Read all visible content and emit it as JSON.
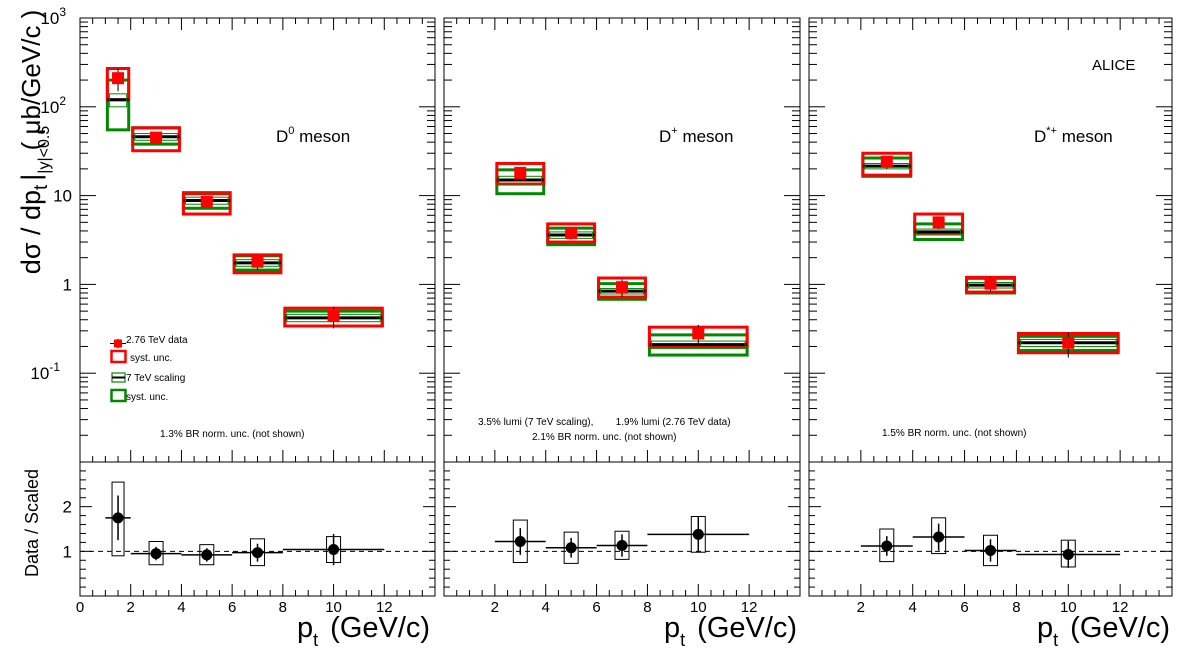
{
  "colors": {
    "data": "#ff0000",
    "scaling": "#008800",
    "ratio": "#000000"
  },
  "yaxis": {
    "label_main": "dσ / dp",
    "label_sub": "t",
    "label_bar_sub": "|y|<0.5",
    "label_unit": "( μb/GeV/c )",
    "tick_labels": [
      {
        "value": 0.1,
        "base": "10",
        "exp": "-1"
      },
      {
        "value": 1,
        "base": "1",
        "exp": ""
      },
      {
        "value": 10,
        "base": "10",
        "exp": ""
      },
      {
        "value": 100,
        "base": "10",
        "exp": "2"
      },
      {
        "value": 1000,
        "base": "10",
        "exp": "3"
      }
    ]
  },
  "ratio_axis": {
    "label": "Data / Scaled",
    "ticks": [
      "1",
      "2"
    ],
    "reference_line": 1
  },
  "xaxis": {
    "label_main": "p",
    "label_sub": "t",
    "label_unit": "(GeV/c)",
    "first_panel_ticks": [
      "0",
      "2",
      "4",
      "6",
      "8",
      "10",
      "12"
    ],
    "other_panel_ticks": [
      "2",
      "4",
      "6",
      "8",
      "10",
      "12"
    ]
  },
  "experiment_label": "ALICE",
  "legend": [
    {
      "label": "2.76 TeV data",
      "symbol": "marker"
    },
    {
      "label": "syst. unc.",
      "symbol": "red-box"
    },
    {
      "label": "7 TeV scaling",
      "symbol": "green-line"
    },
    {
      "label": "syst. unc.",
      "symbol": "green-box"
    }
  ],
  "panels": [
    {
      "meson": {
        "base": "D",
        "sup": "0",
        "rest": " meson"
      },
      "notes": [
        "1.3% BR norm. unc. (not shown)"
      ],
      "ratio_notes": []
    },
    {
      "meson": {
        "base": "D",
        "sup": "+",
        "rest": " meson"
      },
      "notes": [
        "3.5% lumi (7 TeV scaling),        1.9% lumi (2.76 TeV data)",
        "2.1% BR norm. unc. (not shown)"
      ]
    },
    {
      "meson": {
        "base": "D",
        "sup": "*+",
        "rest": " meson"
      },
      "notes": [
        "1.5% BR norm. unc. (not shown)"
      ]
    }
  ],
  "chart_data": [
    {
      "type": "scatter",
      "title": "D0 meson",
      "xlabel": "pt (GeV/c)",
      "ylabel": "dσ / dpt |y|<0.5 ( μb/GeV/c )",
      "xlim": [
        0,
        14
      ],
      "ylim": [
        0.01,
        1000
      ],
      "yscale": "log",
      "ratio_ylim": [
        0,
        3
      ],
      "bins": [
        {
          "xlo": 1,
          "xhi": 2,
          "x": 1.5,
          "data": 210,
          "data_err": 60,
          "data_syst": [
            120,
            270
          ],
          "scaling": 120,
          "scaling_err": 20,
          "scaling_syst": [
            55,
            200
          ],
          "ratio": 1.75,
          "ratio_err": 0.5,
          "ratio_syst": [
            0.9,
            2.55
          ]
        },
        {
          "xlo": 2,
          "xhi": 4,
          "x": 3,
          "data": 45,
          "data_err": 6,
          "data_syst": [
            32,
            58
          ],
          "scaling": 46,
          "scaling_err": 4,
          "scaling_syst": [
            38,
            58
          ],
          "ratio": 0.95,
          "ratio_err": 0.15,
          "ratio_syst": [
            0.7,
            1.22
          ]
        },
        {
          "xlo": 4,
          "xhi": 6,
          "x": 5,
          "data": 8.5,
          "data_err": 1.2,
          "data_syst": [
            6.2,
            10.5
          ],
          "scaling": 8.8,
          "scaling_err": 0.8,
          "scaling_syst": [
            7.2,
            10.8
          ],
          "ratio": 0.92,
          "ratio_err": 0.15,
          "ratio_syst": [
            0.7,
            1.15
          ]
        },
        {
          "xlo": 6,
          "xhi": 8,
          "x": 7,
          "data": 1.8,
          "data_err": 0.35,
          "data_syst": [
            1.35,
            2.15
          ],
          "scaling": 1.75,
          "scaling_err": 0.15,
          "scaling_syst": [
            1.45,
            2.1
          ],
          "ratio": 0.97,
          "ratio_err": 0.2,
          "ratio_syst": [
            0.68,
            1.28
          ]
        },
        {
          "xlo": 8,
          "xhi": 12,
          "x": 10,
          "data": 0.44,
          "data_err": 0.12,
          "data_syst": [
            0.34,
            0.54
          ],
          "scaling": 0.42,
          "scaling_err": 0.04,
          "scaling_syst": [
            0.34,
            0.5
          ],
          "ratio": 1.04,
          "ratio_err": 0.35,
          "ratio_syst": [
            0.75,
            1.33
          ]
        }
      ]
    },
    {
      "type": "scatter",
      "title": "D+ meson",
      "xlabel": "pt (GeV/c)",
      "ylabel": "dσ / dpt |y|<0.5 ( μb/GeV/c )",
      "xlim": [
        0,
        14
      ],
      "ylim": [
        0.01,
        1000
      ],
      "yscale": "log",
      "ratio_ylim": [
        0,
        3
      ],
      "bins": [
        {
          "xlo": 2,
          "xhi": 4,
          "x": 3,
          "data": 18,
          "data_err": 3,
          "data_syst": [
            13.5,
            23
          ],
          "scaling": 15,
          "scaling_err": 1.5,
          "scaling_syst": [
            10.5,
            19.5
          ],
          "ratio": 1.22,
          "ratio_err": 0.3,
          "ratio_syst": [
            0.75,
            1.7
          ]
        },
        {
          "xlo": 4,
          "xhi": 6,
          "x": 5,
          "data": 3.8,
          "data_err": 0.6,
          "data_syst": [
            3,
            4.8
          ],
          "scaling": 3.6,
          "scaling_err": 0.3,
          "scaling_syst": [
            2.8,
            4.3
          ],
          "ratio": 1.08,
          "ratio_err": 0.22,
          "ratio_syst": [
            0.73,
            1.43
          ]
        },
        {
          "xlo": 6,
          "xhi": 8,
          "x": 7,
          "data": 0.93,
          "data_err": 0.2,
          "data_syst": [
            0.72,
            1.18
          ],
          "scaling": 0.84,
          "scaling_err": 0.06,
          "scaling_syst": [
            0.68,
            1.02
          ],
          "ratio": 1.13,
          "ratio_err": 0.25,
          "ratio_syst": [
            0.82,
            1.45
          ]
        },
        {
          "xlo": 8,
          "xhi": 12,
          "x": 10,
          "data": 0.28,
          "data_err": 0.07,
          "data_syst": [
            0.2,
            0.33
          ],
          "scaling": 0.21,
          "scaling_err": 0.02,
          "scaling_syst": [
            0.16,
            0.27
          ],
          "ratio": 1.38,
          "ratio_err": 0.4,
          "ratio_syst": [
            0.98,
            1.78
          ]
        }
      ]
    },
    {
      "type": "scatter",
      "title": "D*+ meson",
      "xlabel": "pt (GeV/c)",
      "ylabel": "dσ / dpt |y|<0.5 ( μb/GeV/c )",
      "xlim": [
        0,
        14
      ],
      "ylim": [
        0.01,
        1000
      ],
      "yscale": "log",
      "ratio_ylim": [
        0,
        3
      ],
      "bins": [
        {
          "xlo": 2,
          "xhi": 4,
          "x": 3,
          "data": 24,
          "data_err": 4,
          "data_syst": [
            17,
            30
          ],
          "scaling": 21.5,
          "scaling_err": 1.5,
          "scaling_syst": [
            16.5,
            26.5
          ],
          "ratio": 1.12,
          "ratio_err": 0.22,
          "ratio_syst": [
            0.77,
            1.5
          ]
        },
        {
          "xlo": 4,
          "xhi": 6,
          "x": 5,
          "data": 5,
          "data_err": 0.8,
          "data_syst": [
            3.8,
            6.2
          ],
          "scaling": 3.9,
          "scaling_err": 0.3,
          "scaling_syst": [
            3.2,
            4.8
          ],
          "ratio": 1.32,
          "ratio_err": 0.3,
          "ratio_syst": [
            0.95,
            1.75
          ]
        },
        {
          "xlo": 6,
          "xhi": 8,
          "x": 7,
          "data": 1.02,
          "data_err": 0.2,
          "data_syst": [
            0.82,
            1.2
          ],
          "scaling": 0.98,
          "scaling_err": 0.07,
          "scaling_syst": [
            0.8,
            1.17
          ],
          "ratio": 1.02,
          "ratio_err": 0.25,
          "ratio_syst": [
            0.68,
            1.36
          ]
        },
        {
          "xlo": 8,
          "xhi": 12,
          "x": 10,
          "data": 0.22,
          "data_err": 0.07,
          "data_syst": [
            0.17,
            0.28
          ],
          "scaling": 0.22,
          "scaling_err": 0.02,
          "scaling_syst": [
            0.18,
            0.26
          ],
          "ratio": 0.93,
          "ratio_err": 0.3,
          "ratio_syst": [
            0.65,
            1.25
          ]
        }
      ]
    }
  ]
}
